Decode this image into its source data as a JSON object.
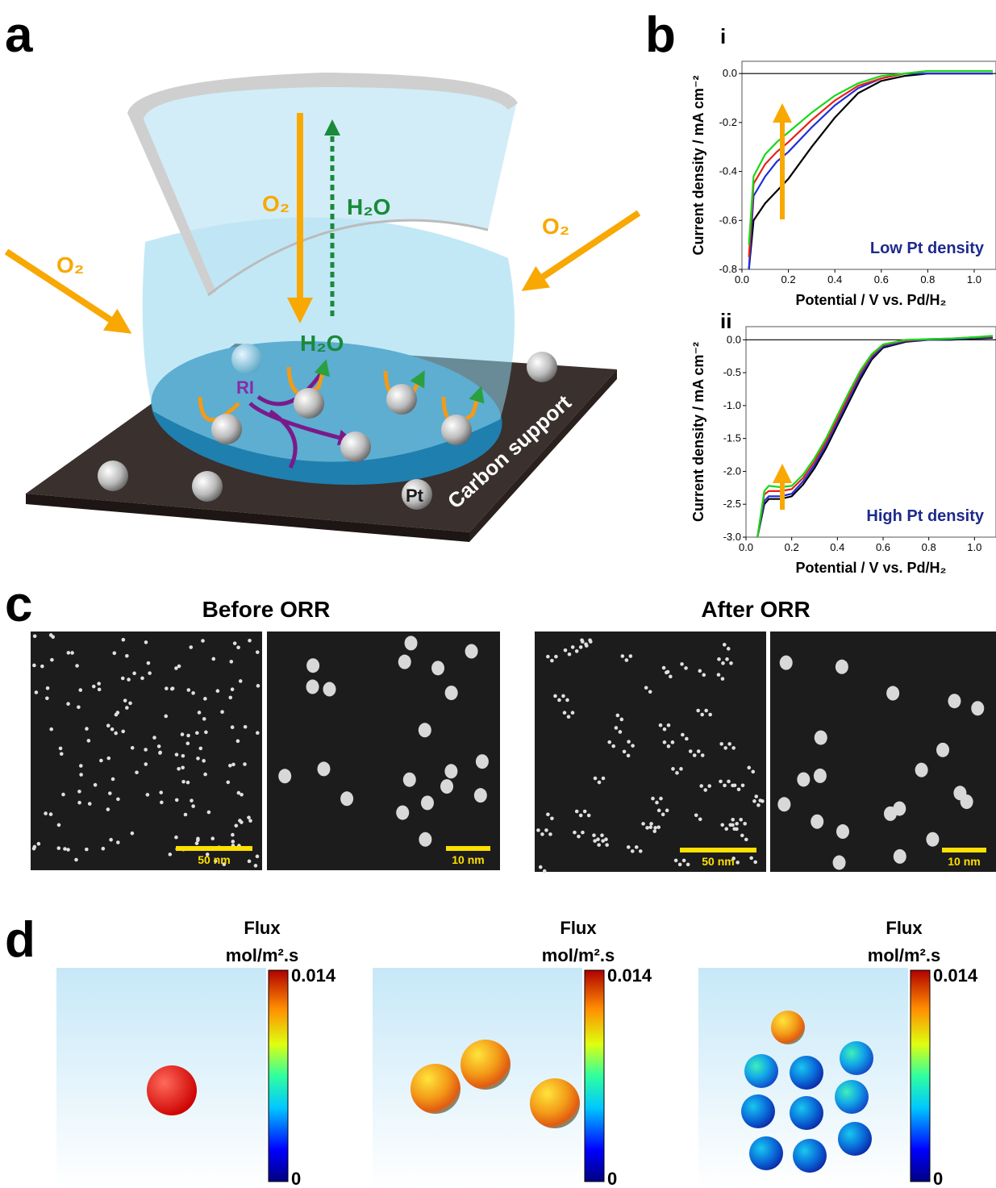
{
  "panel_labels": [
    "a",
    "b",
    "c",
    "d"
  ],
  "panel_a": {
    "o2_labels": [
      "O₂",
      "O₂",
      "O₂"
    ],
    "h2o_labels": [
      "H₂O",
      "H₂O"
    ],
    "intermediate": "RI",
    "particle": "Pt",
    "support": "Carbon support"
  },
  "chart_data": [
    {
      "type": "line",
      "title": "i",
      "annotation": "Low Pt density",
      "xlabel": "Potential / V vs. Pd/H₂",
      "ylabel": "Current density / mA cm⁻²",
      "xlim": [
        0,
        1.08
      ],
      "ylim": [
        -0.8,
        0.05
      ],
      "xticks": [
        {
          "value": 0,
          "label": "0.0"
        },
        0.2,
        0.4,
        0.6,
        0.8,
        {
          "value": 1,
          "label": "1.0"
        }
      ],
      "yticks": [
        -0.8,
        -0.6,
        -0.4,
        -0.2,
        {
          "value": 0,
          "label": "0.0"
        }
      ],
      "x": [
        0.03,
        0.05,
        0.1,
        0.15,
        0.2,
        0.3,
        0.4,
        0.5,
        0.6,
        0.7,
        0.8,
        0.9,
        1.0,
        1.08
      ],
      "series": [
        {
          "color": "#000000",
          "values": [
            -0.8,
            -0.6,
            -0.53,
            -0.48,
            -0.43,
            -0.3,
            -0.18,
            -0.08,
            -0.03,
            -0.01,
            0,
            0,
            0,
            0
          ]
        },
        {
          "color": "#1f2fd8",
          "values": [
            -0.8,
            -0.5,
            -0.42,
            -0.36,
            -0.32,
            -0.22,
            -0.13,
            -0.06,
            -0.02,
            0,
            0,
            0,
            0,
            0
          ]
        },
        {
          "color": "#e8201c",
          "values": [
            -0.75,
            -0.45,
            -0.37,
            -0.32,
            -0.28,
            -0.19,
            -0.11,
            -0.05,
            -0.02,
            0,
            0.01,
            0.01,
            0.01,
            0.01
          ]
        },
        {
          "color": "#18d818",
          "values": [
            -0.7,
            -0.42,
            -0.33,
            -0.28,
            -0.24,
            -0.16,
            -0.09,
            -0.04,
            -0.01,
            0,
            0.01,
            0.01,
            0.01,
            0.01
          ]
        }
      ]
    },
    {
      "type": "line",
      "title": "ii",
      "annotation": "High Pt density",
      "xlabel": "Potential / V vs. Pd/H₂",
      "ylabel": "Current density / mA cm⁻²",
      "xlim": [
        0,
        1.08
      ],
      "ylim": [
        -3.0,
        0.2
      ],
      "xticks": [
        {
          "value": 0,
          "label": "0.0"
        },
        0.2,
        0.4,
        0.6,
        0.8,
        {
          "value": 1,
          "label": "1.0"
        }
      ],
      "yticks": [
        {
          "value": -3,
          "label": "-3.0"
        },
        -2.5,
        {
          "value": -2,
          "label": "-2.0"
        },
        -1.5,
        {
          "value": -1,
          "label": "-1.0"
        },
        -0.5,
        {
          "value": 0,
          "label": "0.0"
        }
      ],
      "x": [
        0.05,
        0.08,
        0.1,
        0.15,
        0.2,
        0.25,
        0.3,
        0.35,
        0.4,
        0.45,
        0.5,
        0.55,
        0.6,
        0.7,
        0.8,
        0.9,
        1.0,
        1.08
      ],
      "series": [
        {
          "color": "#000000",
          "values": [
            -3.0,
            -2.5,
            -2.42,
            -2.42,
            -2.38,
            -2.2,
            -1.95,
            -1.65,
            -1.3,
            -0.95,
            -0.6,
            -0.3,
            -0.12,
            -0.03,
            0,
            0,
            0.02,
            0.03
          ]
        },
        {
          "color": "#1f2fd8",
          "values": [
            -3.0,
            -2.45,
            -2.38,
            -2.38,
            -2.34,
            -2.15,
            -1.9,
            -1.6,
            -1.25,
            -0.9,
            -0.55,
            -0.27,
            -0.1,
            -0.02,
            0,
            0.01,
            0.03,
            0.04
          ]
        },
        {
          "color": "#e8201c",
          "values": [
            -3.0,
            -2.35,
            -2.3,
            -2.3,
            -2.27,
            -2.1,
            -1.85,
            -1.55,
            -1.2,
            -0.85,
            -0.5,
            -0.24,
            -0.08,
            -0.01,
            0.01,
            0.02,
            0.04,
            0.05
          ]
        },
        {
          "color": "#18d818",
          "values": [
            -3.0,
            -2.3,
            -2.22,
            -2.24,
            -2.22,
            -2.05,
            -1.8,
            -1.5,
            -1.15,
            -0.8,
            -0.47,
            -0.22,
            -0.07,
            0,
            0.01,
            0.02,
            0.04,
            0.06
          ]
        }
      ]
    }
  ],
  "panel_c": {
    "titles": [
      "Before ORR",
      "After ORR"
    ],
    "scale_bars": [
      "50 nm",
      "10 nm",
      "50 nm",
      "10 nm"
    ]
  },
  "panel_d": [
    {
      "title": "Flux",
      "unit": "mol/m².s",
      "colorbar_ticks": [
        0,
        0.014
      ]
    },
    {
      "title": "Flux",
      "unit": "mol/m².s",
      "colorbar_ticks": [
        0,
        0.014
      ]
    },
    {
      "title": "Flux",
      "unit": "mol/m².s",
      "colorbar_ticks": [
        0,
        0.014
      ]
    }
  ]
}
